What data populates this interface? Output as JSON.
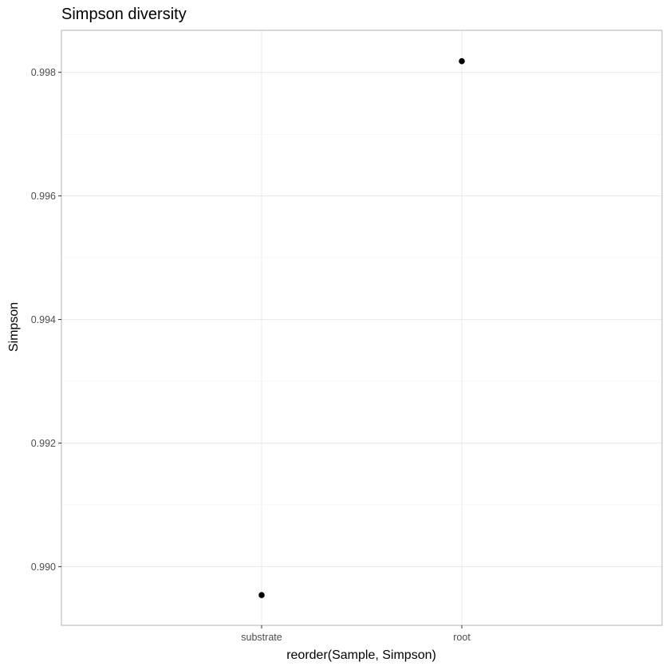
{
  "chart_data": {
    "type": "scatter",
    "title": "Simpson diversity",
    "xlabel": "reorder(Sample, Simpson)",
    "ylabel": "Simpson",
    "categories": [
      "substrate",
      "root"
    ],
    "values": [
      0.98954,
      0.99818
    ],
    "ylim": [
      0.98905,
      0.99868
    ],
    "yticks": [
      "0.990",
      "0.992",
      "0.994",
      "0.996",
      "0.998"
    ],
    "grid": true,
    "point_color": "#000000"
  }
}
